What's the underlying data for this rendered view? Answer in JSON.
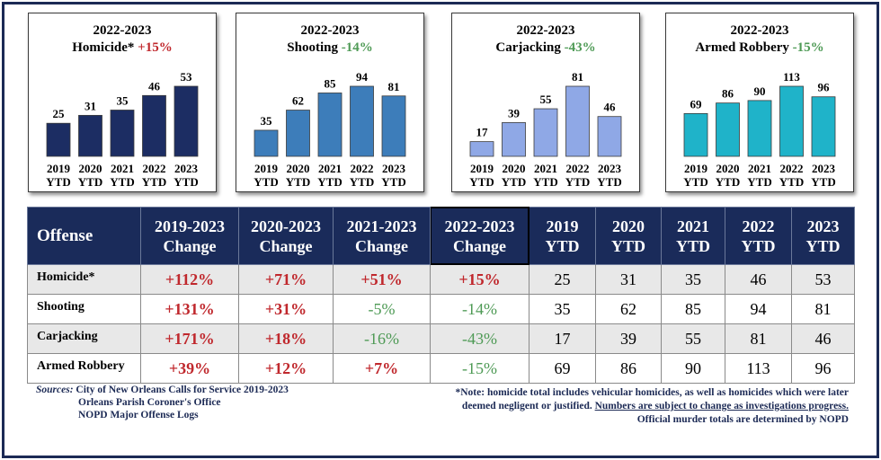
{
  "chart_data": [
    {
      "type": "bar",
      "title": "2022-2023",
      "offense": "Homicide*",
      "change": "+15%",
      "change_dir": "up",
      "color": "#1c2d63",
      "categories": [
        "2019 YTD",
        "2020 YTD",
        "2021 YTD",
        "2022 YTD",
        "2023 YTD"
      ],
      "cat_year": [
        "2019",
        "2020",
        "2021",
        "2022",
        "2023"
      ],
      "cat_suffix": "YTD",
      "values": [
        25,
        31,
        35,
        46,
        53
      ],
      "ylim": [
        0,
        53
      ]
    },
    {
      "type": "bar",
      "title": "2022-2023",
      "offense": "Shooting",
      "change": "-14%",
      "change_dir": "down",
      "color": "#3d7dba",
      "categories": [
        "2019 YTD",
        "2020 YTD",
        "2021 YTD",
        "2022 YTD",
        "2023 YTD"
      ],
      "cat_year": [
        "2019",
        "2020",
        "2021",
        "2022",
        "2023"
      ],
      "cat_suffix": "YTD",
      "values": [
        35,
        62,
        85,
        94,
        81
      ],
      "ylim": [
        0,
        94
      ]
    },
    {
      "type": "bar",
      "title": "2022-2023",
      "offense": "Carjacking",
      "change": "-43%",
      "change_dir": "down",
      "color": "#8fa8e6",
      "categories": [
        "2019 YTD",
        "2020 YTD",
        "2021 YTD",
        "2022 YTD",
        "2023 YTD"
      ],
      "cat_year": [
        "2019",
        "2020",
        "2021",
        "2022",
        "2023"
      ],
      "cat_suffix": "YTD",
      "values": [
        17,
        39,
        55,
        81,
        46
      ],
      "ylim": [
        0,
        81
      ]
    },
    {
      "type": "bar",
      "title": "2022-2023",
      "offense": "Armed Robbery",
      "change": "-15%",
      "change_dir": "down",
      "color": "#1fb3c9",
      "categories": [
        "2019 YTD",
        "2020 YTD",
        "2021 YTD",
        "2022 YTD",
        "2023 YTD"
      ],
      "cat_year": [
        "2019",
        "2020",
        "2021",
        "2022",
        "2023"
      ],
      "cat_suffix": "YTD",
      "values": [
        69,
        86,
        90,
        113,
        96
      ],
      "ylim": [
        0,
        113
      ]
    }
  ],
  "table": {
    "headers": [
      {
        "l1": "Offense",
        "l2": ""
      },
      {
        "l1": "2019-2023",
        "l2": "Change"
      },
      {
        "l1": "2020-2023",
        "l2": "Change"
      },
      {
        "l1": "2021-2023",
        "l2": "Change"
      },
      {
        "l1": "2022-2023",
        "l2": "Change"
      },
      {
        "l1": "2019",
        "l2": "YTD"
      },
      {
        "l1": "2020",
        "l2": "YTD"
      },
      {
        "l1": "2021",
        "l2": "YTD"
      },
      {
        "l1": "2022",
        "l2": "YTD"
      },
      {
        "l1": "2023",
        "l2": "YTD"
      }
    ],
    "rows": [
      {
        "name": "Homicide*",
        "changes": [
          "+112%",
          "+71%",
          "+51%",
          "+15%"
        ],
        "ytd": [
          "25",
          "31",
          "35",
          "46",
          "53"
        ]
      },
      {
        "name": "Shooting",
        "changes": [
          "+131%",
          "+31%",
          "-5%",
          "-14%"
        ],
        "ytd": [
          "35",
          "62",
          "85",
          "94",
          "81"
        ]
      },
      {
        "name": "Carjacking",
        "changes": [
          "+171%",
          "+18%",
          "-16%",
          "-43%"
        ],
        "ytd": [
          "17",
          "39",
          "55",
          "81",
          "46"
        ]
      },
      {
        "name": "Armed Robbery",
        "changes": [
          "+39%",
          "+12%",
          "+7%",
          "-15%"
        ],
        "ytd": [
          "69",
          "86",
          "90",
          "113",
          "96"
        ]
      }
    ]
  },
  "sources": {
    "label": "Sources:",
    "line1": "City of New Orleans Calls for Service 2019-2023",
    "line2": "Orleans Parish Coroner's Office",
    "line3": "NOPD Major Offense Logs"
  },
  "note": {
    "part1": "*Note: homicide total includes vehicular homicides, as well as homicides which were later deemed negligent or justified.",
    "underlined": "Numbers are subject to change as investigations progress.",
    "line3": "Official murder totals are determined by NOPD"
  },
  "colors": {
    "navy": "#1a2b5a",
    "increase": "#c0282d",
    "decrease": "#4e9a55"
  }
}
